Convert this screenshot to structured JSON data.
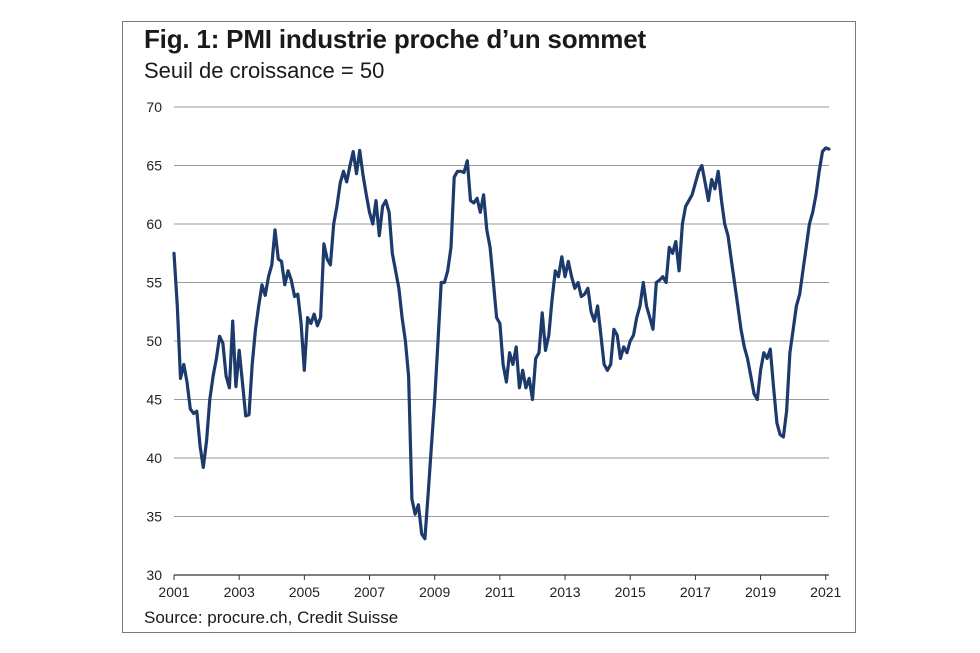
{
  "chart_data": {
    "type": "line",
    "title": "Fig. 1: PMI industrie proche d’un sommet",
    "subtitle": "Seuil de croissance = 50",
    "source": "Source: procure.ch, Credit Suisse",
    "xlabel": "",
    "ylabel": "",
    "xlim": [
      2001,
      2021.1
    ],
    "ylim": [
      30,
      70
    ],
    "yticks": [
      "30",
      "35",
      "40",
      "45",
      "50",
      "55",
      "60",
      "65",
      "70"
    ],
    "xticks": [
      "2001",
      "2003",
      "2005",
      "2007",
      "2009",
      "2011",
      "2013",
      "2015",
      "2017",
      "2019",
      "2021"
    ],
    "grid": "horizontal",
    "line_color": "#1c3a6b",
    "series": [
      {
        "name": "",
        "x": [
          2001.0,
          2001.1,
          2001.2,
          2001.3,
          2001.4,
          2001.5,
          2001.6,
          2001.7,
          2001.8,
          2001.9,
          2002.0,
          2002.1,
          2002.2,
          2002.3,
          2002.4,
          2002.5,
          2002.6,
          2002.7,
          2002.8,
          2002.9,
          2003.0,
          2003.1,
          2003.2,
          2003.3,
          2003.4,
          2003.5,
          2003.6,
          2003.7,
          2003.8,
          2003.9,
          2004.0,
          2004.1,
          2004.2,
          2004.3,
          2004.4,
          2004.5,
          2004.6,
          2004.7,
          2004.8,
          2004.9,
          2005.0,
          2005.1,
          2005.2,
          2005.3,
          2005.4,
          2005.5,
          2005.6,
          2005.7,
          2005.8,
          2005.9,
          2006.0,
          2006.1,
          2006.2,
          2006.3,
          2006.4,
          2006.5,
          2006.6,
          2006.7,
          2006.8,
          2006.9,
          2007.0,
          2007.1,
          2007.2,
          2007.3,
          2007.4,
          2007.5,
          2007.6,
          2007.7,
          2007.8,
          2007.9,
          2008.0,
          2008.1,
          2008.2,
          2008.3,
          2008.4,
          2008.5,
          2008.6,
          2008.7,
          2008.8,
          2008.9,
          2009.0,
          2009.1,
          2009.2,
          2009.3,
          2009.4,
          2009.5,
          2009.6,
          2009.7,
          2009.8,
          2009.9,
          2010.0,
          2010.1,
          2010.2,
          2010.3,
          2010.4,
          2010.5,
          2010.6,
          2010.7,
          2010.8,
          2010.9,
          2011.0,
          2011.1,
          2011.2,
          2011.3,
          2011.4,
          2011.5,
          2011.6,
          2011.7,
          2011.8,
          2011.9,
          2012.0,
          2012.1,
          2012.2,
          2012.3,
          2012.4,
          2012.5,
          2012.6,
          2012.7,
          2012.8,
          2012.9,
          2013.0,
          2013.1,
          2013.2,
          2013.3,
          2013.4,
          2013.5,
          2013.6,
          2013.7,
          2013.8,
          2013.9,
          2014.0,
          2014.1,
          2014.2,
          2014.3,
          2014.4,
          2014.5,
          2014.6,
          2014.7,
          2014.8,
          2014.9,
          2015.0,
          2015.1,
          2015.2,
          2015.3,
          2015.4,
          2015.5,
          2015.6,
          2015.7,
          2015.8,
          2015.9,
          2016.0,
          2016.1,
          2016.2,
          2016.3,
          2016.4,
          2016.5,
          2016.6,
          2016.7,
          2016.8,
          2016.9,
          2017.0,
          2017.1,
          2017.2,
          2017.3,
          2017.4,
          2017.5,
          2017.6,
          2017.7,
          2017.8,
          2017.9,
          2018.0,
          2018.1,
          2018.2,
          2018.3,
          2018.4,
          2018.5,
          2018.6,
          2018.7,
          2018.8,
          2018.9,
          2019.0,
          2019.1,
          2019.2,
          2019.3,
          2019.4,
          2019.5,
          2019.6,
          2019.7,
          2019.8,
          2019.9,
          2020.0,
          2020.1,
          2020.2,
          2020.3,
          2020.4,
          2020.5,
          2020.6,
          2020.7,
          2020.8,
          2020.9,
          2021.0,
          2021.1
        ],
        "values": [
          57.5,
          53.0,
          46.8,
          48.0,
          46.5,
          44.2,
          43.8,
          44.0,
          41.0,
          39.2,
          41.5,
          45.0,
          47.0,
          48.5,
          50.4,
          49.8,
          47.0,
          46.0,
          51.7,
          46.1,
          49.2,
          46.5,
          43.6,
          43.7,
          48.0,
          51.0,
          53.0,
          54.8,
          53.9,
          55.5,
          56.5,
          59.5,
          57.0,
          56.8,
          54.8,
          56.0,
          55.2,
          53.8,
          54.0,
          51.5,
          47.5,
          52.0,
          51.5,
          52.3,
          51.3,
          52.0,
          58.3,
          57.0,
          56.5,
          60.0,
          61.5,
          63.5,
          64.5,
          63.6,
          65.0,
          66.2,
          64.3,
          66.3,
          64.2,
          62.5,
          61.0,
          60.0,
          62.0,
          59.0,
          61.5,
          62.0,
          61.0,
          57.5,
          56.0,
          54.5,
          52.0,
          50.0,
          47.0,
          36.5,
          35.2,
          36.0,
          33.5,
          33.1,
          37.0,
          41.0,
          45.0,
          50.0,
          55.0,
          55.0,
          56.0,
          58.0,
          64.0,
          64.5,
          64.5,
          64.4,
          65.4,
          62.0,
          61.8,
          62.2,
          61.0,
          62.5,
          59.5,
          58.0,
          55.0,
          52.0,
          51.5,
          48.0,
          46.5,
          49.0,
          48.0,
          49.5,
          46.0,
          47.5,
          46.0,
          46.8,
          45.0,
          48.5,
          49.0,
          52.4,
          49.2,
          50.5,
          53.5,
          56.0,
          55.5,
          57.2,
          55.5,
          56.8,
          55.5,
          54.5,
          55.0,
          53.8,
          54.0,
          54.5,
          52.5,
          51.7,
          53.0,
          50.5,
          48.0,
          47.5,
          48.0,
          51.0,
          50.5,
          48.5,
          49.5,
          49.0,
          50.0,
          50.5,
          52.0,
          53.0,
          55.0,
          53.0,
          52.0,
          51.0,
          55.0,
          55.2,
          55.5,
          55.0,
          58.0,
          57.5,
          58.5,
          56.0,
          60.0,
          61.5,
          62.0,
          62.5,
          63.5,
          64.5,
          65.0,
          63.5,
          62.0,
          63.8,
          63.0,
          64.5,
          62.0,
          60.0,
          59.0,
          57.0,
          55.0,
          53.0,
          51.0,
          49.5,
          48.5,
          47.0,
          45.5,
          45.0,
          47.5,
          49.0,
          48.5,
          49.3,
          46.0,
          43.0,
          42.0,
          41.8,
          44.0,
          49.0,
          51.0,
          53.0,
          54.0,
          56.0,
          58.0,
          60.0,
          61.0,
          62.5,
          64.5,
          66.2,
          66.5,
          66.4
        ]
      }
    ]
  }
}
